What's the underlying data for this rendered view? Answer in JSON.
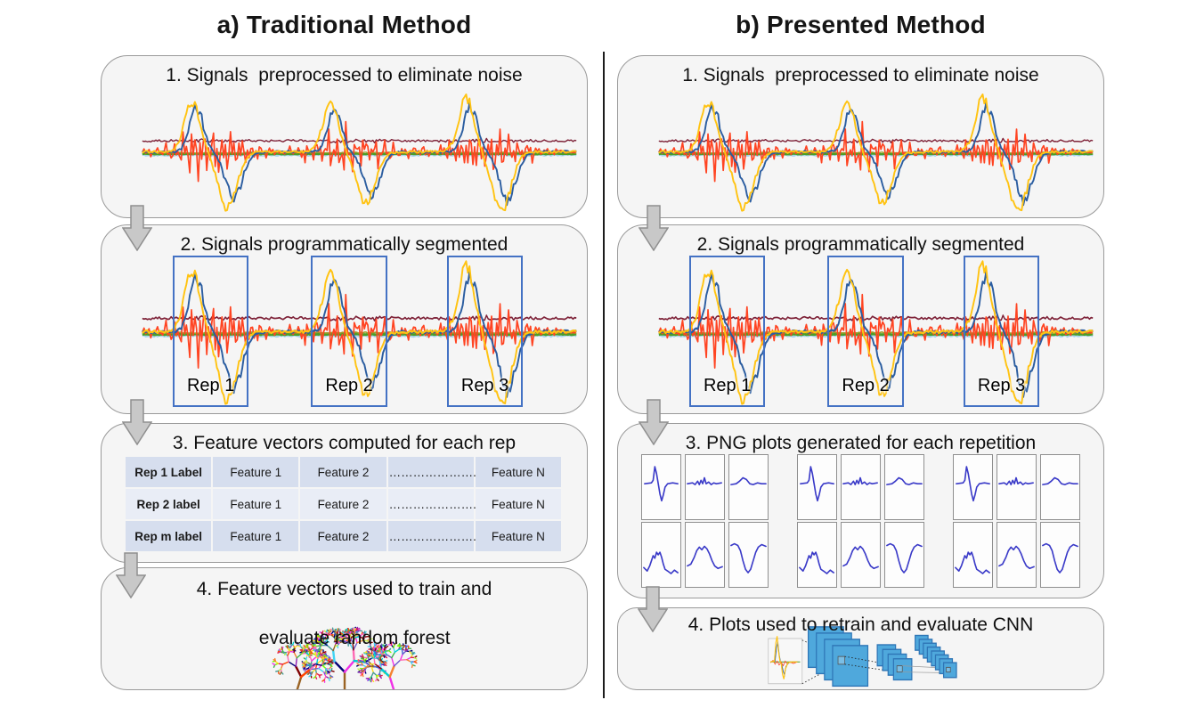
{
  "colors": {
    "accent_blue": "#4472C4",
    "signal_yellow": "#FFC312",
    "signal_blue": "#2B5DA0",
    "signal_red": "#FF4422",
    "signal_maroon": "#7E2238",
    "signal_lightblue": "#A8D3EE",
    "signal_olive": "#9B9B2A",
    "signal_green": "#4C9E28",
    "panel_line_blue": "#3A3AC8",
    "cnn_blue": "#4FA8DC",
    "cnn_border": "#2E75B6",
    "table_row_dark": "#D6DEEE",
    "table_row_light": "#E9EDF6"
  },
  "left": {
    "title": "a) Traditional Method",
    "steps": {
      "s1": "1. Signals  preprocessed to eliminate noise",
      "s2": "2. Signals programmatically segmented",
      "s3": "3. Feature vectors computed for each rep",
      "s4_line1": "4. Feature vectors used to train and",
      "s4_line2": "evaluate random forest"
    },
    "rep_labels": [
      "Rep 1",
      "Rep 2",
      "Rep 3"
    ],
    "table": {
      "rows": [
        [
          "Rep 1 Label",
          "Feature 1",
          "Feature 2",
          "………………….",
          "Feature N"
        ],
        [
          "Rep 2 label",
          "Feature 1",
          "Feature 2",
          "………………….",
          "Feature N"
        ],
        [
          "Rep m label",
          "Feature 1",
          "Feature 2",
          "………………….",
          "Feature N"
        ]
      ]
    }
  },
  "right": {
    "title": "b) Presented Method",
    "steps": {
      "s1": "1. Signals  preprocessed to eliminate noise",
      "s2": "2. Signals programmatically segmented",
      "s3": "3. PNG plots generated for each repetition",
      "s4": "4. Plots used to retrain and evaluate CNN"
    },
    "rep_labels": [
      "Rep 1",
      "Rep 2",
      "Rep 3"
    ]
  }
}
